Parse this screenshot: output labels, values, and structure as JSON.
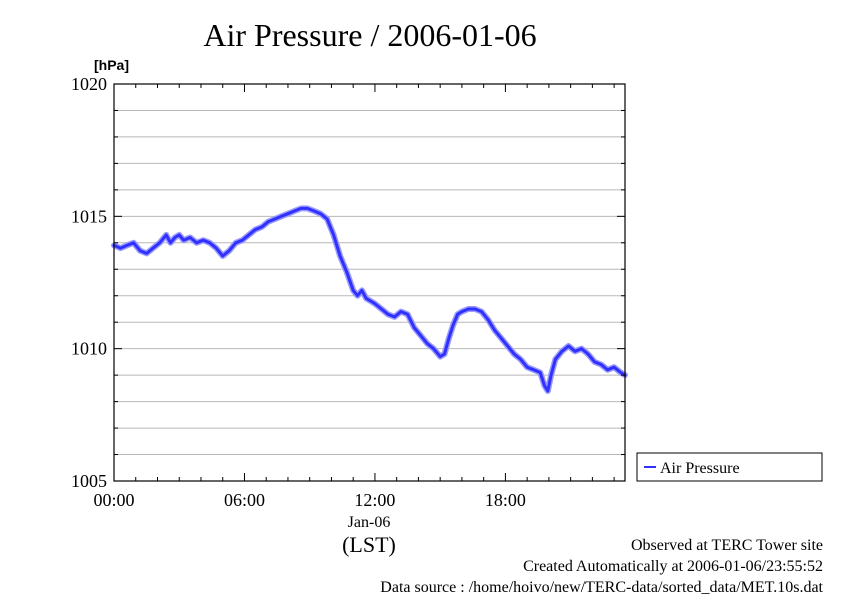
{
  "chart_data": {
    "type": "line",
    "title": "Air Pressure / 2006-01-06",
    "ylabel": "[hPa]",
    "ylim": [
      1005,
      1020
    ],
    "yticks": [
      "1005",
      "1010",
      "1015",
      "1020"
    ],
    "xlim": [
      0,
      23.5
    ],
    "xticks": [
      {
        "value": 0,
        "label": "00:00"
      },
      {
        "value": 6,
        "label": "06:00"
      },
      {
        "value": 12,
        "label": "12:00"
      },
      {
        "value": 18,
        "label": "18:00"
      }
    ],
    "date_label": "Jan-06",
    "timezone_label": "(LST)",
    "grid": true,
    "legend_position": "right",
    "series": [
      {
        "name": "Air Pressure",
        "color": "#3030ff",
        "x": [
          0,
          0.3,
          0.6,
          0.9,
          1.2,
          1.5,
          1.8,
          2.1,
          2.4,
          2.6,
          2.8,
          3.0,
          3.2,
          3.5,
          3.8,
          4.1,
          4.4,
          4.7,
          5.0,
          5.3,
          5.6,
          5.9,
          6.2,
          6.5,
          6.8,
          7.1,
          7.4,
          7.7,
          8.0,
          8.3,
          8.6,
          8.9,
          9.2,
          9.5,
          9.8,
          10.1,
          10.4,
          10.7,
          11.0,
          11.2,
          11.4,
          11.6,
          11.8,
          12.0,
          12.3,
          12.6,
          12.9,
          13.2,
          13.5,
          13.8,
          14.1,
          14.4,
          14.7,
          15.0,
          15.2,
          15.4,
          15.6,
          15.8,
          16.0,
          16.3,
          16.6,
          16.9,
          17.2,
          17.5,
          17.8,
          18.1,
          18.4,
          18.7,
          19.0,
          19.3,
          19.6,
          19.8,
          19.95,
          20.1,
          20.3,
          20.6,
          20.9,
          21.2,
          21.5,
          21.8,
          22.1,
          22.4,
          22.7,
          23.0,
          23.3,
          23.5
        ],
        "values": [
          1013.9,
          1013.8,
          1013.9,
          1014.0,
          1013.7,
          1013.6,
          1013.8,
          1014.0,
          1014.3,
          1014.0,
          1014.2,
          1014.3,
          1014.1,
          1014.2,
          1014.0,
          1014.1,
          1014.0,
          1013.8,
          1013.5,
          1013.7,
          1014.0,
          1014.1,
          1014.3,
          1014.5,
          1014.6,
          1014.8,
          1014.9,
          1015.0,
          1015.1,
          1015.2,
          1015.3,
          1015.3,
          1015.2,
          1015.1,
          1014.9,
          1014.3,
          1013.5,
          1012.9,
          1012.2,
          1012.0,
          1012.2,
          1011.9,
          1011.8,
          1011.7,
          1011.5,
          1011.3,
          1011.2,
          1011.4,
          1011.3,
          1010.8,
          1010.5,
          1010.2,
          1010.0,
          1009.7,
          1009.8,
          1010.4,
          1010.9,
          1011.3,
          1011.4,
          1011.5,
          1011.5,
          1011.4,
          1011.1,
          1010.7,
          1010.4,
          1010.1,
          1009.8,
          1009.6,
          1009.3,
          1009.2,
          1009.1,
          1008.6,
          1008.4,
          1009.0,
          1009.6,
          1009.9,
          1010.1,
          1009.9,
          1010.0,
          1009.8,
          1009.5,
          1009.4,
          1009.2,
          1009.3,
          1009.1,
          1009.0
        ]
      }
    ],
    "annotations": [
      "Observed at TERC Tower site",
      "Created Automatically at 2006-01-06/23:55:52",
      "Data source : /home/hoivo/new/TERC-data/sorted_data/MET.10s.dat"
    ]
  }
}
